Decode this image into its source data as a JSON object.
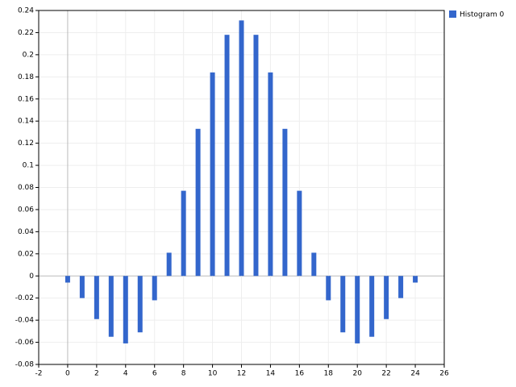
{
  "chart_data": {
    "type": "bar",
    "x": [
      0,
      1,
      2,
      3,
      4,
      5,
      6,
      7,
      8,
      9,
      10,
      11,
      12,
      13,
      14,
      15,
      16,
      17,
      18,
      19,
      20,
      21,
      22,
      23,
      24
    ],
    "series": [
      {
        "name": "Histogram 0",
        "color": "#3366cc",
        "values": [
          -0.006,
          -0.02,
          -0.039,
          -0.055,
          -0.061,
          -0.051,
          -0.022,
          0.021,
          0.077,
          0.133,
          0.184,
          0.218,
          0.231,
          0.218,
          0.184,
          0.133,
          0.077,
          0.021,
          -0.022,
          -0.051,
          -0.061,
          -0.055,
          -0.039,
          -0.02,
          -0.006
        ]
      }
    ],
    "xlim": [
      -2,
      26
    ],
    "xticks": [
      -2,
      0,
      2,
      4,
      6,
      8,
      10,
      12,
      14,
      16,
      18,
      20,
      22,
      24,
      26
    ],
    "ylim": [
      -0.08,
      0.24
    ],
    "yticks": [
      -0.08,
      -0.06,
      -0.04,
      -0.02,
      0,
      0.02,
      0.04,
      0.06,
      0.08,
      0.1,
      0.12,
      0.14,
      0.16,
      0.18,
      0.2,
      0.22,
      0.24
    ],
    "grid": true,
    "legend": "right"
  }
}
